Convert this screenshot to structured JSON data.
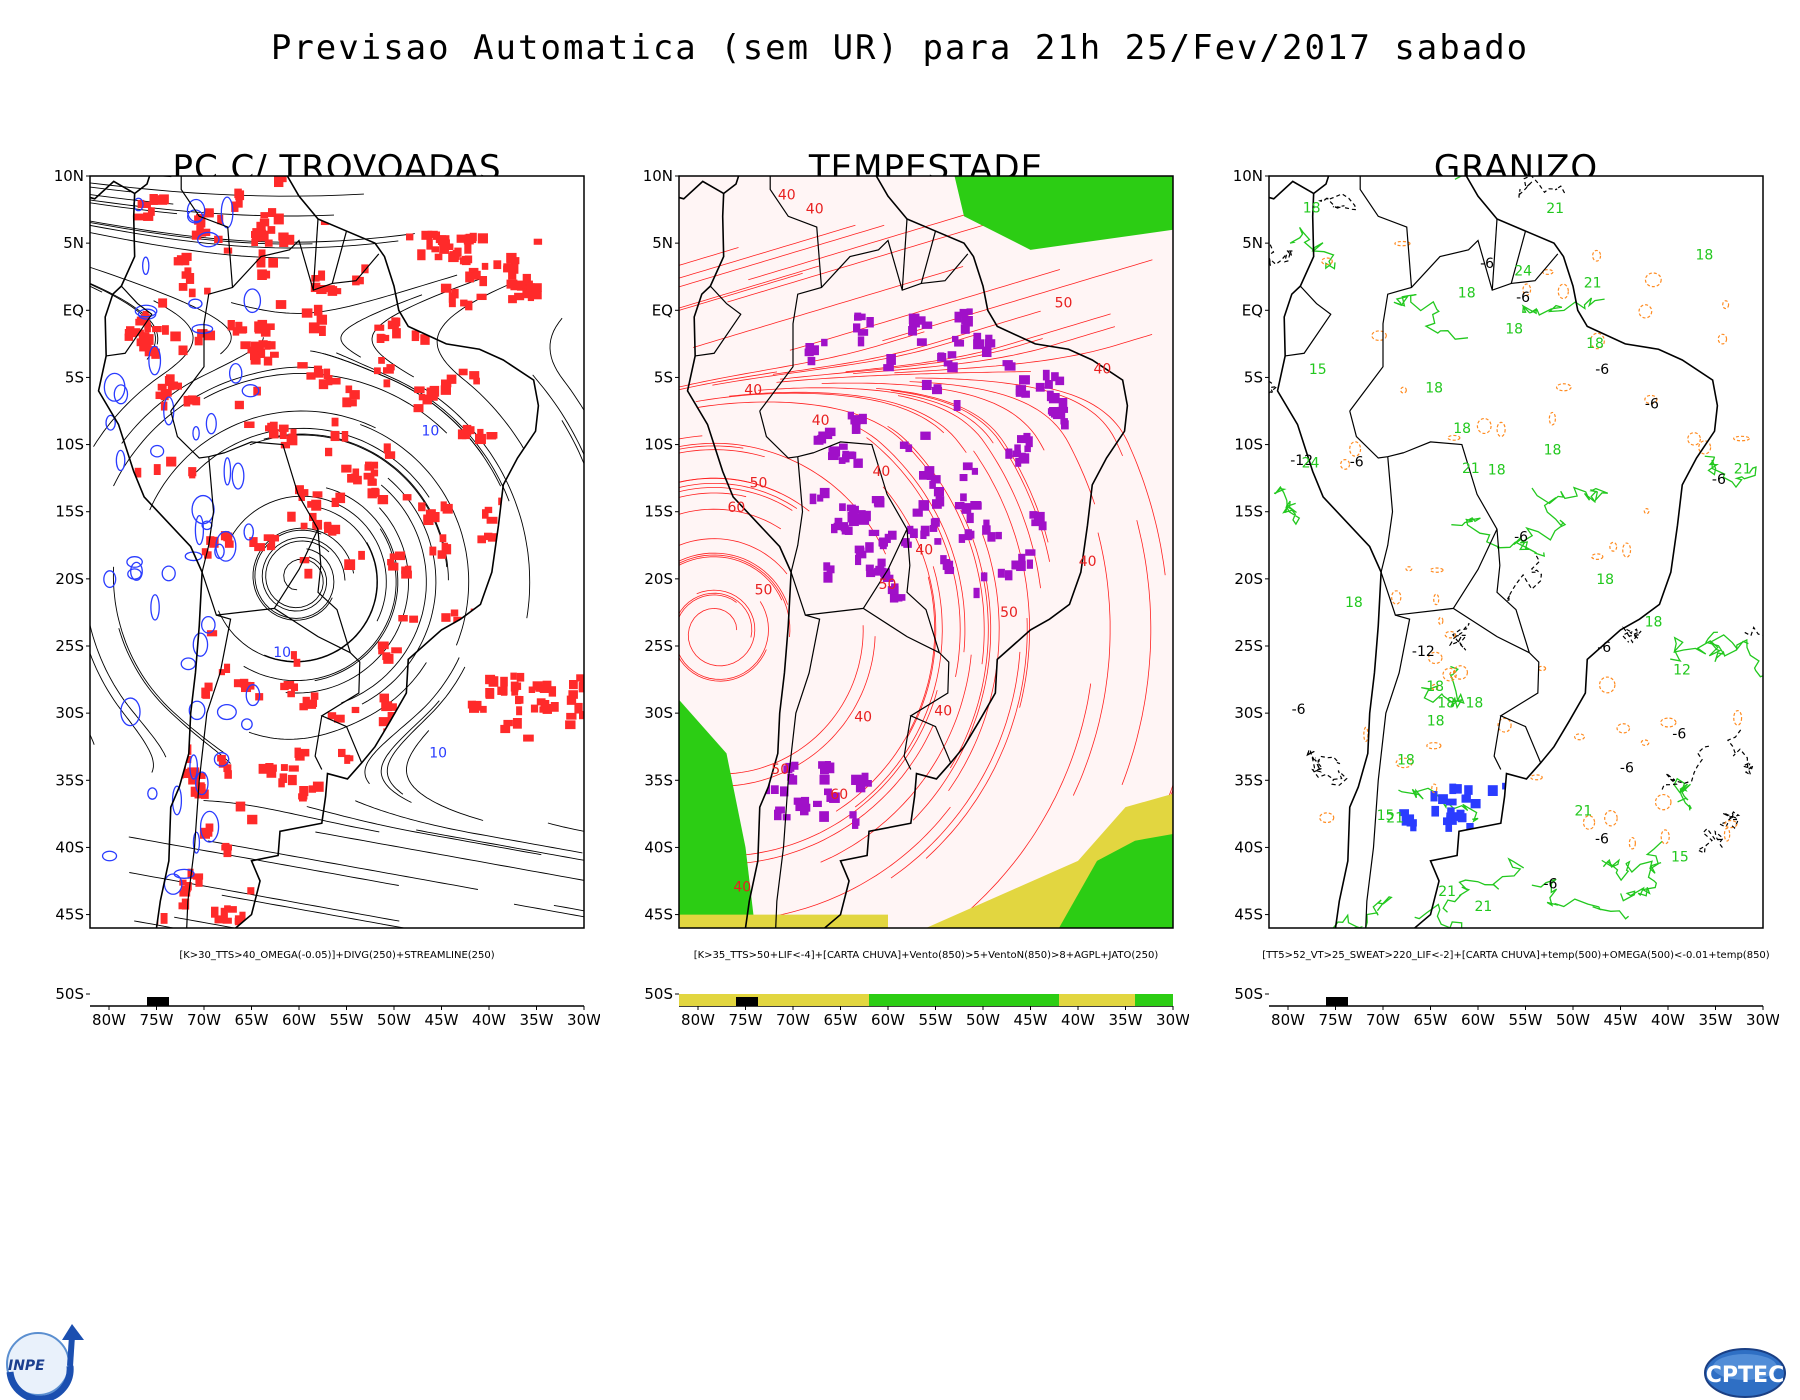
{
  "title": "Previsao Automatica (sem UR) para 21h 25/Fev/2017 sabado",
  "axes": {
    "lat_labels": [
      "10N",
      "5N",
      "EQ",
      "5S",
      "10S",
      "15S",
      "20S",
      "25S",
      "30S",
      "35S",
      "40S",
      "45S",
      "50S"
    ],
    "lon_labels": [
      "80W",
      "75W",
      "70W",
      "65W",
      "60W",
      "55W",
      "50W",
      "45W",
      "40W",
      "35W",
      "30W"
    ],
    "lat_range": [
      -50,
      10
    ],
    "lon_range": [
      -82,
      -30
    ]
  },
  "panels": [
    {
      "title": "PC C/ TROVOADAS",
      "caption": "[K>30_TTS>40_OMEGA(-0.05)]+DIVG(250)+STREAMLINE(250)",
      "contour_labels": [
        "10",
        "10",
        "10"
      ],
      "colors": {
        "streamline": "#000000",
        "fill": "#ff2a2a",
        "contour": "#2a3cff"
      }
    },
    {
      "title": "TEMPESTADE",
      "caption": "[K>35_TTS>50+LIF<-4]+[CARTA CHUVA]+Vento(850)>5+VentoN(850)>8+AGPL+JATO(250)",
      "contour_labels": [
        "40",
        "40",
        "50",
        "50",
        "60",
        "50",
        "50",
        "50",
        "60",
        "40",
        "40",
        "40",
        "50",
        "40",
        "40",
        "40",
        "40",
        "40",
        "40"
      ],
      "colors": {
        "streamline": "#ff2020",
        "fill": "#a010c8",
        "green": "#2ccd14",
        "yellow": "#e2d640"
      }
    },
    {
      "title": "GRANIZO",
      "caption": "[TT5>52_VT>25_SWEAT>220_LIF<-2]+[CARTA CHUVA]+temp(500)+OMEGA(500)<-0.01+temp(850)",
      "contour_labels": [
        "-6",
        "18",
        "18",
        "-6",
        "18",
        "18",
        "18",
        "18",
        "-6",
        "18",
        "21",
        "-6",
        "-6",
        "18",
        "21",
        "15",
        "21",
        "18",
        "-6",
        "-6",
        "21",
        "24",
        "-6",
        "12",
        "18",
        "18",
        "-6",
        "-12",
        "-12",
        "15",
        "21",
        "18",
        "21",
        "24",
        "18",
        "21",
        "15",
        "-6",
        "18",
        "18",
        "-6",
        "21",
        "-6",
        "-6",
        "18",
        "18"
      ],
      "colors": {
        "green": "#22c81e",
        "black_dash": "#000000",
        "orange": "#ff8c22",
        "blue": "#2a3cff"
      }
    }
  ],
  "logos": {
    "inpe": "INPE",
    "cptec": "CPTEC"
  }
}
